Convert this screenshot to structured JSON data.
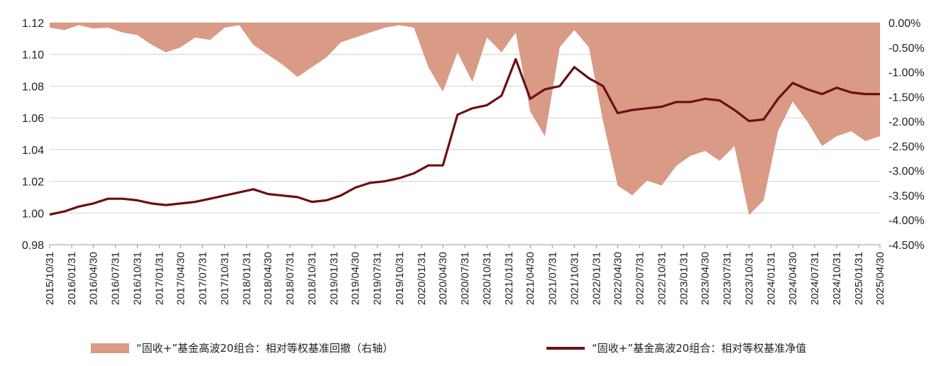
{
  "chart_data": {
    "type": "line",
    "x_ticks": [
      "2015/10/31",
      "2016/01/31",
      "2016/04/30",
      "2016/07/31",
      "2016/10/31",
      "2017/01/31",
      "2017/04/30",
      "2017/07/31",
      "2017/10/31",
      "2018/01/31",
      "2018/04/30",
      "2018/07/31",
      "2018/10/31",
      "2019/01/31",
      "2019/04/30",
      "2019/07/31",
      "2019/10/31",
      "2020/01/31",
      "2020/04/30",
      "2020/07/31",
      "2020/10/31",
      "2021/01/31",
      "2021/04/30",
      "2021/07/31",
      "2021/10/31",
      "2022/01/31",
      "2022/04/30",
      "2022/07/31",
      "2022/10/31",
      "2023/01/31",
      "2023/04/30",
      "2023/07/31",
      "2023/10/31",
      "2024/01/31",
      "2024/04/30",
      "2024/07/31",
      "2024/10/31",
      "2025/01/31",
      "2025/04/30"
    ],
    "y_left": {
      "ylim": [
        0.98,
        1.12
      ],
      "ticks": [
        "0.98",
        "1.00",
        "1.02",
        "1.04",
        "1.06",
        "1.08",
        "1.10",
        "1.12"
      ]
    },
    "y_right": {
      "ylim": [
        -4.5,
        0.0
      ],
      "ticks": [
        "-4.50%",
        "-4.00%",
        "-3.50%",
        "-3.00%",
        "-2.50%",
        "-2.00%",
        "-1.50%",
        "-1.00%",
        "-0.50%",
        "0.00%"
      ]
    },
    "grid": "horizontal",
    "legend_position": "bottom",
    "series": [
      {
        "name": "“固收+”基金高波20组合：相对等权基准回撤（右轴）",
        "type": "area",
        "axis": "right",
        "color": "#d99a86",
        "x": [
          "2015/10/31",
          "2015/12/31",
          "2016/02/29",
          "2016/04/30",
          "2016/06/30",
          "2016/08/31",
          "2016/10/31",
          "2016/12/31",
          "2017/02/28",
          "2017/04/30",
          "2017/06/30",
          "2017/08/31",
          "2017/10/31",
          "2017/12/31",
          "2018/02/28",
          "2018/04/30",
          "2018/06/30",
          "2018/08/31",
          "2018/10/31",
          "2018/12/31",
          "2019/02/28",
          "2019/04/30",
          "2019/06/30",
          "2019/08/31",
          "2019/10/31",
          "2019/12/31",
          "2020/02/29",
          "2020/04/30",
          "2020/06/30",
          "2020/08/31",
          "2020/10/31",
          "2020/12/31",
          "2021/02/28",
          "2021/04/30",
          "2021/06/30",
          "2021/08/31",
          "2021/10/31",
          "2021/12/31",
          "2022/02/28",
          "2022/04/30",
          "2022/06/30",
          "2022/08/31",
          "2022/10/31",
          "2022/12/31",
          "2023/02/28",
          "2023/04/30",
          "2023/06/30",
          "2023/08/31",
          "2023/10/31",
          "2023/12/31",
          "2024/02/29",
          "2024/04/30",
          "2024/06/30",
          "2024/08/31",
          "2024/10/31",
          "2024/12/31",
          "2025/02/28",
          "2025/04/30"
        ],
        "values": [
          -0.1,
          -0.15,
          -0.05,
          -0.12,
          -0.1,
          -0.2,
          -0.25,
          -0.45,
          -0.6,
          -0.5,
          -0.3,
          -0.35,
          -0.1,
          -0.05,
          -0.45,
          -0.65,
          -0.85,
          -1.1,
          -0.9,
          -0.7,
          -0.4,
          -0.3,
          -0.2,
          -0.1,
          -0.05,
          -0.1,
          -0.9,
          -1.4,
          -0.6,
          -1.2,
          -0.3,
          -0.6,
          -0.2,
          -1.8,
          -2.3,
          -0.5,
          -0.15,
          -0.5,
          -2.0,
          -3.3,
          -3.5,
          -3.2,
          -3.3,
          -2.9,
          -2.7,
          -2.6,
          -2.8,
          -2.5,
          -3.9,
          -3.6,
          -2.2,
          -1.6,
          -2.0,
          -2.5,
          -2.3,
          -2.2,
          -2.4,
          -2.3
        ]
      },
      {
        "name": "“固收+”基金高波20组合：相对等权基准净值",
        "type": "line",
        "axis": "left",
        "color": "#6b0f12",
        "x": [
          "2015/10/31",
          "2015/12/31",
          "2016/02/29",
          "2016/04/30",
          "2016/06/30",
          "2016/08/31",
          "2016/10/31",
          "2016/12/31",
          "2017/02/28",
          "2017/04/30",
          "2017/06/30",
          "2017/08/31",
          "2017/10/31",
          "2017/12/31",
          "2018/02/28",
          "2018/04/30",
          "2018/06/30",
          "2018/08/31",
          "2018/10/31",
          "2018/12/31",
          "2019/02/28",
          "2019/04/30",
          "2019/06/30",
          "2019/08/31",
          "2019/10/31",
          "2019/12/31",
          "2020/02/29",
          "2020/04/30",
          "2020/06/30",
          "2020/08/31",
          "2020/10/31",
          "2020/12/31",
          "2021/02/28",
          "2021/04/30",
          "2021/06/30",
          "2021/08/31",
          "2021/10/31",
          "2021/12/31",
          "2022/02/28",
          "2022/04/30",
          "2022/06/30",
          "2022/08/31",
          "2022/10/31",
          "2022/12/31",
          "2023/02/28",
          "2023/04/30",
          "2023/06/30",
          "2023/08/31",
          "2023/10/31",
          "2023/12/31",
          "2024/02/29",
          "2024/04/30",
          "2024/06/30",
          "2024/08/31",
          "2024/10/31",
          "2024/12/31",
          "2025/02/28",
          "2025/04/30"
        ],
        "values": [
          0.999,
          1.001,
          1.004,
          1.006,
          1.009,
          1.009,
          1.008,
          1.006,
          1.005,
          1.006,
          1.007,
          1.009,
          1.011,
          1.013,
          1.015,
          1.012,
          1.011,
          1.01,
          1.007,
          1.008,
          1.011,
          1.016,
          1.019,
          1.02,
          1.022,
          1.025,
          1.03,
          1.03,
          1.062,
          1.066,
          1.068,
          1.074,
          1.097,
          1.072,
          1.078,
          1.08,
          1.092,
          1.085,
          1.08,
          1.063,
          1.065,
          1.066,
          1.067,
          1.07,
          1.07,
          1.072,
          1.071,
          1.065,
          1.058,
          1.059,
          1.072,
          1.082,
          1.078,
          1.075,
          1.079,
          1.076,
          1.075,
          1.075
        ]
      }
    ]
  }
}
